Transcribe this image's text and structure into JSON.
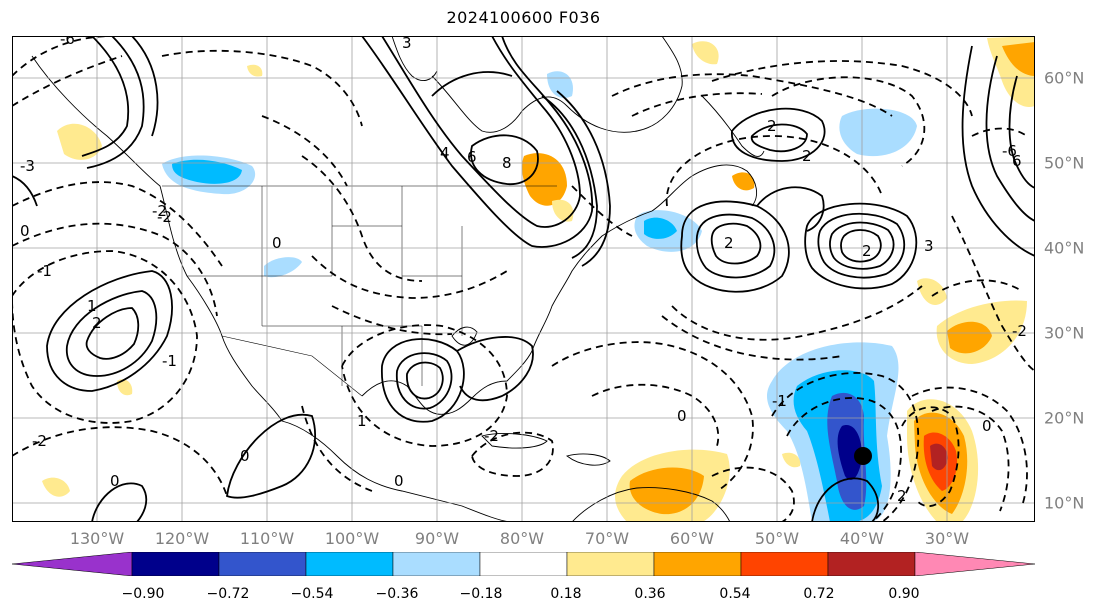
{
  "title": "2024100600 F036",
  "lon_labels": [
    "130°W",
    "120°W",
    "110°W",
    "100°W",
    "90°W",
    "80°W",
    "70°W",
    "60°W",
    "50°W",
    "40°W",
    "30°W"
  ],
  "lat_labels": [
    "60°N",
    "50°N",
    "40°N",
    "30°N",
    "20°N",
    "10°N"
  ],
  "colorbar": {
    "colors": [
      "#9932cc",
      "#00008b",
      "#3355cc",
      "#00bbff",
      "#aaddff",
      "#ffffff",
      "#ffea8f",
      "#ffa500",
      "#ff4400",
      "#b22222",
      "#ff88b4"
    ],
    "tick_labels": [
      "−0.90",
      "−0.72",
      "−0.54",
      "−0.36",
      "−0.18",
      "0.18",
      "0.36",
      "0.54",
      "0.72",
      "0.90"
    ]
  },
  "contour_labels": [
    "-6",
    "-3",
    "-2",
    "-1",
    "0",
    "1",
    "2",
    "3",
    "4",
    "6",
    "8",
    "2",
    "-2",
    "0",
    "-1",
    "1",
    "2",
    "0",
    "-2",
    "0",
    "2",
    "3",
    "2",
    "-2",
    "0",
    "-1",
    "-6",
    "6",
    "2",
    "-2",
    "0",
    "0"
  ],
  "marker": {
    "label": "storm-center",
    "lon": "40°W",
    "lat": "15°N"
  }
}
